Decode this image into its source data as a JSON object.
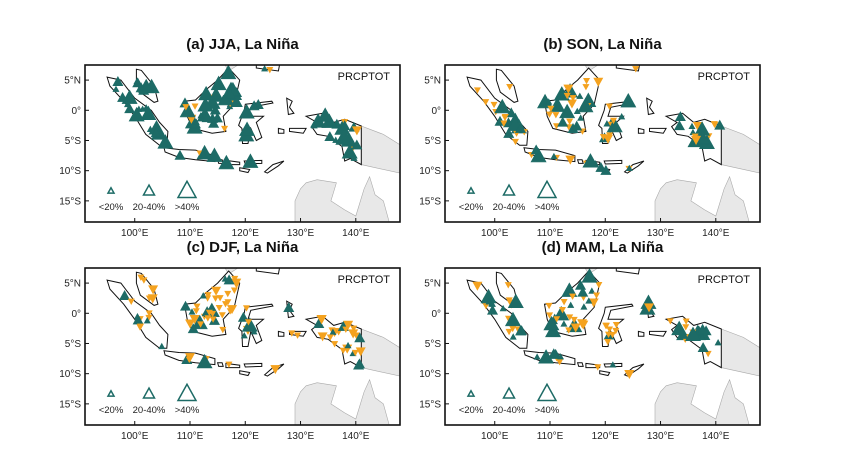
{
  "panels": [
    {
      "title": "(a) JJA, La Niña",
      "label": "PRCPTOT"
    },
    {
      "title": "(b) SON, La Niña",
      "label": "PRCPTOT"
    },
    {
      "title": "(c) DJF, La Niña",
      "label": "PRCPTOT"
    },
    {
      "title": "(d) MAM, La Niña",
      "label": "PRCPTOT"
    }
  ],
  "lat_labels": [
    "5°N",
    "0°",
    "5°S",
    "10°S",
    "15°S"
  ],
  "lon_labels": [
    "100°E",
    "110°E",
    "120°E",
    "130°E",
    "140°E"
  ],
  "legend": [
    "<20%",
    "20-40%",
    ">40%"
  ]
}
